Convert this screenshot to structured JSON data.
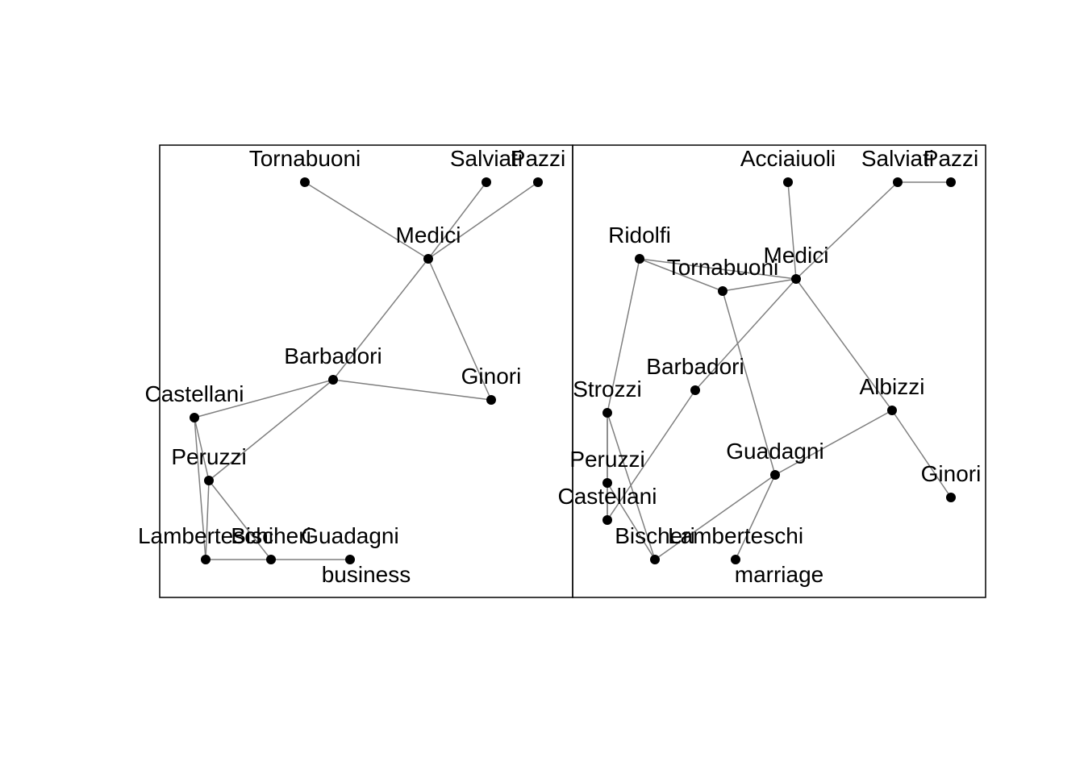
{
  "colors": {
    "background": "#ffffff",
    "frame": "#000000",
    "edge": "#7f7f7f",
    "node": "#000000",
    "label": "#000000"
  },
  "panels": [
    {
      "id": "business",
      "caption": "business",
      "nodes": [
        {
          "id": "Tornabuoni",
          "label": "Tornabuoni"
        },
        {
          "id": "Salviati",
          "label": "Salviati"
        },
        {
          "id": "Pazzi",
          "label": "Pazzi"
        },
        {
          "id": "Medici",
          "label": "Medici"
        },
        {
          "id": "Barbadori",
          "label": "Barbadori"
        },
        {
          "id": "Ginori",
          "label": "Ginori"
        },
        {
          "id": "Castellani",
          "label": "Castellani"
        },
        {
          "id": "Peruzzi",
          "label": "Peruzzi"
        },
        {
          "id": "Lamberteschi",
          "label": "Lamberteschi"
        },
        {
          "id": "Bischeri",
          "label": "Bischeri"
        },
        {
          "id": "Guadagni",
          "label": "Guadagni"
        }
      ],
      "edges": [
        [
          "Tornabuoni",
          "Medici"
        ],
        [
          "Salviati",
          "Medici"
        ],
        [
          "Pazzi",
          "Medici"
        ],
        [
          "Medici",
          "Barbadori"
        ],
        [
          "Medici",
          "Ginori"
        ],
        [
          "Barbadori",
          "Ginori"
        ],
        [
          "Barbadori",
          "Castellani"
        ],
        [
          "Barbadori",
          "Peruzzi"
        ],
        [
          "Castellani",
          "Peruzzi"
        ],
        [
          "Castellani",
          "Lamberteschi"
        ],
        [
          "Peruzzi",
          "Lamberteschi"
        ],
        [
          "Peruzzi",
          "Bischeri"
        ],
        [
          "Lamberteschi",
          "Bischeri"
        ],
        [
          "Bischeri",
          "Guadagni"
        ]
      ]
    },
    {
      "id": "marriage",
      "caption": "marriage",
      "nodes": [
        {
          "id": "Acciaiuoli",
          "label": "Acciaiuoli"
        },
        {
          "id": "Salviati",
          "label": "Salviati"
        },
        {
          "id": "Pazzi",
          "label": "Pazzi"
        },
        {
          "id": "Ridolfi",
          "label": "Ridolfi"
        },
        {
          "id": "Tornabuoni",
          "label": "Tornabuoni"
        },
        {
          "id": "Medici",
          "label": "Medici"
        },
        {
          "id": "Barbadori",
          "label": "Barbadori"
        },
        {
          "id": "Strozzi",
          "label": "Strozzi"
        },
        {
          "id": "Albizzi",
          "label": "Albizzi"
        },
        {
          "id": "Peruzzi",
          "label": "Peruzzi"
        },
        {
          "id": "Guadagni",
          "label": "Guadagni"
        },
        {
          "id": "Castellani",
          "label": "Castellani"
        },
        {
          "id": "Ginori",
          "label": "Ginori"
        },
        {
          "id": "Bischeri",
          "label": "Bischeri"
        },
        {
          "id": "Lamberteschi",
          "label": "Lamberteschi"
        }
      ],
      "edges": [
        [
          "Acciaiuoli",
          "Medici"
        ],
        [
          "Salviati",
          "Medici"
        ],
        [
          "Salviati",
          "Pazzi"
        ],
        [
          "Ridolfi",
          "Tornabuoni"
        ],
        [
          "Ridolfi",
          "Medici"
        ],
        [
          "Ridolfi",
          "Strozzi"
        ],
        [
          "Tornabuoni",
          "Medici"
        ],
        [
          "Tornabuoni",
          "Guadagni"
        ],
        [
          "Medici",
          "Barbadori"
        ],
        [
          "Medici",
          "Albizzi"
        ],
        [
          "Barbadori",
          "Castellani"
        ],
        [
          "Strozzi",
          "Peruzzi"
        ],
        [
          "Strozzi",
          "Castellani"
        ],
        [
          "Strozzi",
          "Bischeri"
        ],
        [
          "Albizzi",
          "Guadagni"
        ],
        [
          "Albizzi",
          "Ginori"
        ],
        [
          "Peruzzi",
          "Castellani"
        ],
        [
          "Peruzzi",
          "Bischeri"
        ],
        [
          "Guadagni",
          "Bischeri"
        ],
        [
          "Guadagni",
          "Lamberteschi"
        ]
      ]
    }
  ]
}
